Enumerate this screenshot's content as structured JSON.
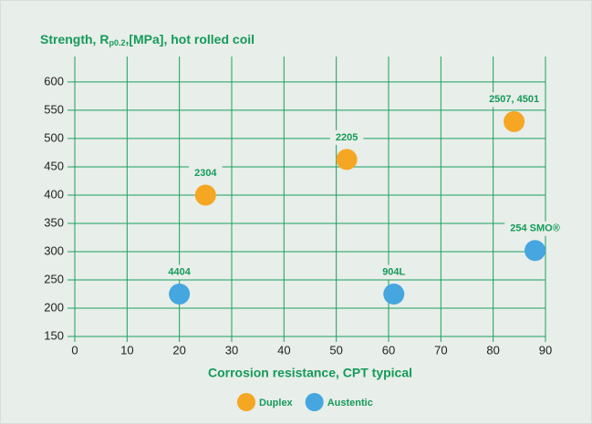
{
  "chart_data": {
    "type": "scatter",
    "title": [
      "Strength, R",
      "p0.2",
      ",[MPa], hot rolled coil"
    ],
    "xlabel": "Corrosion resistance, CPT typical",
    "xlim": [
      0,
      90
    ],
    "xticks": [
      0,
      10,
      20,
      30,
      40,
      50,
      60,
      70,
      80,
      90
    ],
    "ylim": [
      150,
      645
    ],
    "yticks": [
      150,
      200,
      250,
      300,
      350,
      400,
      450,
      500,
      550,
      600
    ],
    "grid": true,
    "series": [
      {
        "name": "Duplex",
        "color": "#f5a623",
        "x": [
          25,
          52,
          84
        ],
        "values": [
          400,
          463,
          530
        ],
        "labels": [
          "2304",
          "2205",
          "2507, 4501"
        ]
      },
      {
        "name": "Austentic",
        "color": "#45a6e0",
        "x": [
          20,
          61,
          88
        ],
        "values": [
          225,
          225,
          302
        ],
        "labels": [
          "4404",
          "904L",
          "254 SMO®"
        ]
      }
    ]
  }
}
